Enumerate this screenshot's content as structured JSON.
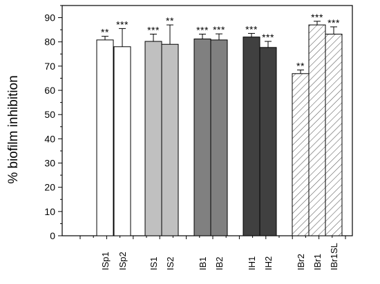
{
  "chart_data": {
    "type": "bar",
    "title": "",
    "xlabel": "",
    "ylabel": "% biofilm inhibition",
    "ylim": [
      0,
      95
    ],
    "yticks": [
      0,
      10,
      20,
      30,
      40,
      50,
      60,
      70,
      80,
      90
    ],
    "grid": false,
    "categories": [
      "ISp1",
      "ISp2",
      "IS1",
      "IS2",
      "IB1",
      "IB2",
      "IH1",
      "IH2",
      "IBr2",
      "IBr1",
      "IBr1SL"
    ],
    "values": [
      80.8,
      78.0,
      80.2,
      79.0,
      81.2,
      80.8,
      82.0,
      77.7,
      66.9,
      87.0,
      83.2
    ],
    "errors": [
      1.5,
      7.5,
      3.0,
      8.0,
      2.0,
      2.5,
      1.5,
      2.5,
      1.5,
      1.5,
      3.0
    ],
    "significance": [
      "**",
      "***",
      "***",
      "**",
      "***",
      "***",
      "***",
      "***",
      "**",
      "***",
      "***"
    ],
    "fills": [
      "#ffffff",
      "#ffffff",
      "#c0c0c0",
      "#c0c0c0",
      "#808080",
      "#808080",
      "#404040",
      "#404040",
      "hatch",
      "hatch",
      "hatch"
    ]
  }
}
